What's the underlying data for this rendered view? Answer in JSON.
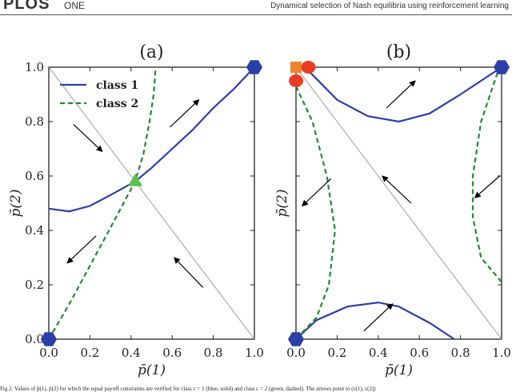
{
  "header": {
    "logo": "PLOS ONE",
    "logo_short": "PLOS",
    "logo_suffix": "ONE",
    "running_title": "Dynamical selection of Nash equilibria using reinforcement learning"
  },
  "caption": "Fig 2. Values of p̄(1), p̄(2) for which the equal payoff constraints are verified for class c = 1 (blue, solid) and class c = 2 (green, dashed). The arrows point to (ε(1), ε(2))",
  "colors": {
    "class1": "#2b3fa8",
    "class2": "#1f8a2e",
    "marker_hexagon": "#2b3fa8",
    "marker_triangle": "#5cc04a",
    "marker_square": "#f0862a",
    "marker_circle": "#ec3b24",
    "diagonal": "#888888"
  },
  "chart_data": [
    {
      "type": "line",
      "title": "(a)",
      "xlabel": "p̄(1)",
      "ylabel": "p̄(2)",
      "xlim": [
        0,
        1
      ],
      "ylim": [
        0,
        1
      ],
      "xticks": [
        "0.0",
        "0.2",
        "0.4",
        "0.6",
        "0.8",
        "1.0"
      ],
      "yticks": [
        "0.0",
        "0.2",
        "0.4",
        "0.6",
        "0.8",
        "1.0"
      ],
      "legend": {
        "placement": "top-left",
        "entries": [
          "class 1",
          "class 2"
        ]
      },
      "series": [
        {
          "name": "class 1",
          "style": "solid",
          "points": [
            [
              0,
              0.48
            ],
            [
              0.1,
              0.47
            ],
            [
              0.2,
              0.49
            ],
            [
              0.3,
              0.53
            ],
            [
              0.42,
              0.58
            ],
            [
              0.5,
              0.63
            ],
            [
              0.6,
              0.7
            ],
            [
              0.7,
              0.77
            ],
            [
              0.8,
              0.85
            ],
            [
              0.9,
              0.92
            ],
            [
              1,
              1
            ]
          ]
        },
        {
          "name": "class 2",
          "style": "dashed",
          "points": [
            [
              0,
              0
            ],
            [
              0.1,
              0.13
            ],
            [
              0.2,
              0.27
            ],
            [
              0.3,
              0.41
            ],
            [
              0.42,
              0.58
            ],
            [
              0.46,
              0.68
            ],
            [
              0.49,
              0.8
            ],
            [
              0.51,
              0.9
            ],
            [
              0.52,
              1
            ]
          ]
        }
      ],
      "diagonal": [
        [
          0,
          1
        ],
        [
          1,
          0
        ]
      ],
      "markers": [
        {
          "shape": "hexagon",
          "at": [
            0,
            0
          ]
        },
        {
          "shape": "hexagon",
          "at": [
            1,
            1
          ]
        },
        {
          "shape": "triangle",
          "at": [
            0.42,
            0.58
          ]
        }
      ],
      "arrows": [
        [
          [
            0.12,
            0.79
          ],
          [
            0.26,
            0.69
          ]
        ],
        [
          [
            0.59,
            0.78
          ],
          [
            0.73,
            0.88
          ]
        ],
        [
          [
            0.23,
            0.38
          ],
          [
            0.09,
            0.28
          ]
        ],
        [
          [
            0.75,
            0.19
          ],
          [
            0.61,
            0.3
          ]
        ]
      ]
    },
    {
      "type": "line",
      "title": "(b)",
      "xlabel": "p̄(1)",
      "ylabel": "p̄(2)",
      "xlim": [
        0,
        1
      ],
      "ylim": [
        0,
        1
      ],
      "xticks": [
        "0.0",
        "0.2",
        "0.4",
        "0.6",
        "0.8",
        "1.0"
      ],
      "series": [
        {
          "style": "solid",
          "class": "class1",
          "points": [
            [
              0.07,
              0.98
            ],
            [
              0.2,
              0.88
            ],
            [
              0.35,
              0.82
            ],
            [
              0.5,
              0.8
            ],
            [
              0.65,
              0.83
            ],
            [
              0.8,
              0.9
            ],
            [
              1,
              1
            ]
          ]
        },
        {
          "style": "solid",
          "class": "class1",
          "points": [
            [
              0,
              0
            ],
            [
              0.1,
              0.07
            ],
            [
              0.25,
              0.12
            ],
            [
              0.4,
              0.135
            ],
            [
              0.5,
              0.12
            ],
            [
              0.65,
              0.06
            ],
            [
              0.77,
              0
            ]
          ]
        },
        {
          "style": "dashed",
          "class": "class2",
          "points": [
            [
              0,
              0.93
            ],
            [
              0.08,
              0.8
            ],
            [
              0.15,
              0.6
            ],
            [
              0.19,
              0.4
            ],
            [
              0.16,
              0.2
            ],
            [
              0.1,
              0.08
            ],
            [
              0,
              0
            ]
          ]
        },
        {
          "style": "dashed",
          "class": "class2",
          "points": [
            [
              0.98,
              0.98
            ],
            [
              0.9,
              0.8
            ],
            [
              0.86,
              0.6
            ],
            [
              0.86,
              0.45
            ],
            [
              0.9,
              0.3
            ],
            [
              1,
              0.21
            ]
          ]
        }
      ],
      "diagonal": [
        [
          0,
          1
        ],
        [
          1,
          0
        ]
      ],
      "markers": [
        {
          "shape": "hexagon",
          "at": [
            0,
            0
          ]
        },
        {
          "shape": "hexagon",
          "at": [
            1,
            1
          ]
        },
        {
          "shape": "square",
          "at": [
            0,
            1
          ]
        },
        {
          "shape": "circle",
          "at": [
            0.06,
            1
          ]
        },
        {
          "shape": "circle",
          "at": [
            0,
            0.95
          ]
        }
      ],
      "arrows": [
        [
          [
            0.44,
            0.85
          ],
          [
            0.58,
            0.95
          ]
        ],
        [
          [
            0.17,
            0.59
          ],
          [
            0.03,
            0.49
          ]
        ],
        [
          [
            0.56,
            0.5
          ],
          [
            0.42,
            0.6
          ]
        ],
        [
          [
            0.99,
            0.6
          ],
          [
            0.87,
            0.52
          ]
        ],
        [
          [
            0.33,
            0.03
          ],
          [
            0.47,
            0.13
          ]
        ]
      ]
    }
  ]
}
